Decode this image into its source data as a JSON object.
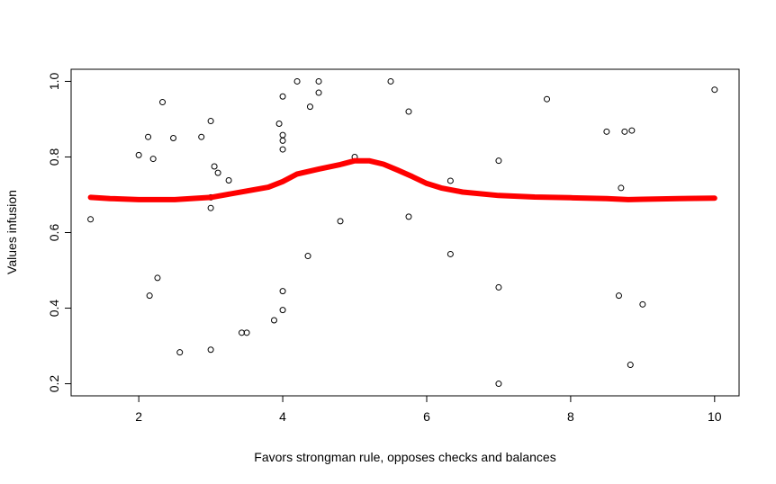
{
  "chart_data": {
    "type": "scatter",
    "title": "",
    "xlabel": "Favors strongman rule, opposes checks and balances",
    "ylabel": "Values infusion",
    "xlim": [
      1.06,
      10.34
    ],
    "ylim": [
      0.168,
      1.032
    ],
    "x_ticks": [
      "2",
      "4",
      "6",
      "8",
      "10"
    ],
    "y_ticks": [
      "0.2",
      "0.4",
      "0.6",
      "0.8",
      "1.0"
    ],
    "grid": false,
    "points": [
      [
        1.33,
        0.635
      ],
      [
        2.0,
        0.805
      ],
      [
        2.13,
        0.853
      ],
      [
        2.15,
        0.433
      ],
      [
        2.2,
        0.795
      ],
      [
        2.26,
        0.48
      ],
      [
        2.33,
        0.945
      ],
      [
        2.48,
        0.85
      ],
      [
        2.57,
        0.283
      ],
      [
        2.87,
        0.853
      ],
      [
        3.0,
        0.895
      ],
      [
        3.0,
        0.693
      ],
      [
        3.0,
        0.665
      ],
      [
        3.0,
        0.29
      ],
      [
        3.05,
        0.775
      ],
      [
        3.1,
        0.758
      ],
      [
        3.25,
        0.738
      ],
      [
        3.43,
        0.335
      ],
      [
        3.5,
        0.335
      ],
      [
        3.88,
        0.368
      ],
      [
        3.95,
        0.888
      ],
      [
        4.0,
        0.96
      ],
      [
        4.0,
        0.858
      ],
      [
        4.0,
        0.843
      ],
      [
        4.0,
        0.82
      ],
      [
        4.0,
        0.445
      ],
      [
        4.0,
        0.395
      ],
      [
        4.2,
        1.0
      ],
      [
        4.35,
        0.538
      ],
      [
        4.38,
        0.933
      ],
      [
        4.5,
        1.0
      ],
      [
        4.5,
        0.97
      ],
      [
        4.8,
        0.63
      ],
      [
        5.0,
        0.8
      ],
      [
        5.5,
        1.0
      ],
      [
        5.75,
        0.92
      ],
      [
        5.75,
        0.642
      ],
      [
        6.33,
        0.737
      ],
      [
        6.33,
        0.543
      ],
      [
        7.0,
        0.79
      ],
      [
        7.0,
        0.455
      ],
      [
        7.0,
        0.2
      ],
      [
        7.67,
        0.953
      ],
      [
        8.5,
        0.867
      ],
      [
        8.67,
        0.433
      ],
      [
        8.7,
        0.718
      ],
      [
        8.75,
        0.867
      ],
      [
        8.83,
        0.25
      ],
      [
        8.85,
        0.87
      ],
      [
        9.0,
        0.41
      ],
      [
        10.0,
        0.978
      ]
    ],
    "smooth_line": {
      "color": "#ff0000",
      "x": [
        1.33,
        1.6,
        2.0,
        2.5,
        3.0,
        3.5,
        3.8,
        4.0,
        4.2,
        4.5,
        4.8,
        5.0,
        5.2,
        5.4,
        5.6,
        5.8,
        6.0,
        6.2,
        6.5,
        7.0,
        7.5,
        8.0,
        8.5,
        8.8,
        9.0,
        9.5,
        10.0
      ],
      "y": [
        0.693,
        0.69,
        0.687,
        0.687,
        0.693,
        0.71,
        0.72,
        0.735,
        0.755,
        0.768,
        0.78,
        0.79,
        0.79,
        0.781,
        0.765,
        0.748,
        0.73,
        0.718,
        0.707,
        0.698,
        0.694,
        0.692,
        0.69,
        0.687,
        0.688,
        0.69,
        0.691
      ]
    }
  }
}
